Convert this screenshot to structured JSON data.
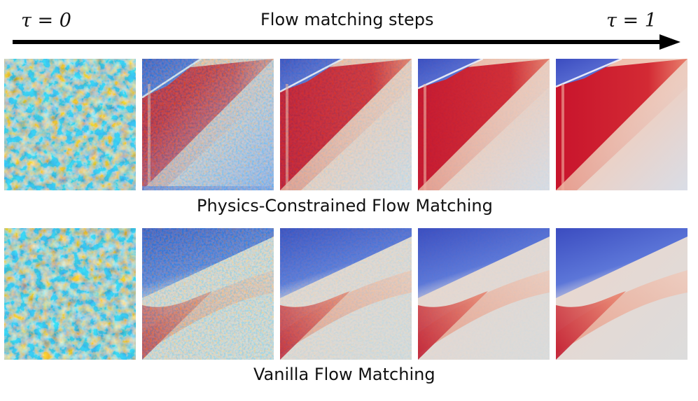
{
  "header": {
    "title": "Flow matching steps",
    "tau_start": "τ = 0",
    "tau_end": "τ = 1"
  },
  "rows": [
    {
      "id": "pcfm",
      "caption": "Physics-Constrained Flow Matching",
      "panels": [
        {
          "kind": "noise",
          "noise_strength": 1.0
        },
        {
          "kind": "field",
          "variant": "pcfm",
          "noise_strength": 0.55
        },
        {
          "kind": "field",
          "variant": "pcfm",
          "noise_strength": 0.25
        },
        {
          "kind": "field",
          "variant": "pcfm",
          "noise_strength": 0.08
        },
        {
          "kind": "field",
          "variant": "pcfm",
          "noise_strength": 0.0
        }
      ]
    },
    {
      "id": "vanilla",
      "caption": "Vanilla Flow Matching",
      "panels": [
        {
          "kind": "noise",
          "noise_strength": 1.0
        },
        {
          "kind": "field",
          "variant": "vanilla",
          "noise_strength": 0.55
        },
        {
          "kind": "field",
          "variant": "vanilla",
          "noise_strength": 0.2
        },
        {
          "kind": "field",
          "variant": "vanilla",
          "noise_strength": 0.05
        },
        {
          "kind": "field",
          "variant": "vanilla",
          "noise_strength": 0.0
        }
      ]
    }
  ],
  "colors": {
    "blue": "#3b4cc0",
    "red": "#c0142b",
    "neutral": "#dcdcdc",
    "light_blue": "#b9ccf5",
    "arrow": "#000000"
  }
}
